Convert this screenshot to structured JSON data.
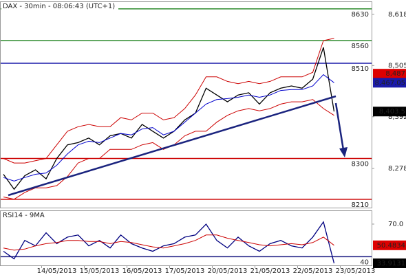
{
  "chart_data": [
    {
      "type": "line",
      "title": "DAX - 30min - 08:06:43 (UTC+1)",
      "categories": [
        null,
        null,
        null,
        null,
        null,
        "14/05/2013",
        null,
        null,
        null,
        "15/05/2013",
        null,
        null,
        null,
        "16/05/2013",
        null,
        null,
        null,
        "17/05/2013",
        null,
        null,
        null,
        "20/05/2013",
        null,
        null,
        null,
        "21/05/2013",
        null,
        null,
        null,
        "22/05/2013",
        null,
        null,
        null,
        "23/05/2013",
        null
      ],
      "series": [
        {
          "color": "#000000",
          "values": [
            8265,
            8232,
            8262,
            8275,
            8255,
            8300,
            8330,
            8335,
            8345,
            8330,
            8350,
            8355,
            8345,
            8375,
            8360,
            8345,
            8360,
            8385,
            8400,
            8455,
            8440,
            8425,
            8440,
            8445,
            8420,
            8445,
            8455,
            8460,
            8455,
            8475,
            8545,
            8403.5,
            null,
            null,
            null
          ]
        },
        {
          "color": "#cc0000",
          "values": [
            8300,
            8290,
            8290,
            8295,
            8300,
            8330,
            8360,
            8370,
            8375,
            8370,
            8370,
            8390,
            8385,
            8400,
            8400,
            8385,
            8390,
            8410,
            8440,
            8480,
            8480,
            8470,
            8465,
            8470,
            8465,
            8470,
            8480,
            8480,
            8480,
            8490,
            8560,
            8565,
            null,
            null,
            null
          ]
        },
        {
          "color": "#cc0000",
          "values": [
            8215,
            8210,
            8225,
            8235,
            8235,
            8240,
            8260,
            8290,
            8300,
            8300,
            8320,
            8320,
            8320,
            8330,
            8335,
            8320,
            8330,
            8350,
            8360,
            8360,
            8380,
            8395,
            8405,
            8410,
            8405,
            8410,
            8420,
            8425,
            8425,
            8430,
            8410,
            8395,
            null,
            null,
            null
          ]
        },
        {
          "color": "#0000cc",
          "values": [
            8258,
            8250,
            8258,
            8265,
            8268,
            8285,
            8310,
            8330,
            8338,
            8335,
            8345,
            8355,
            8352,
            8365,
            8368,
            8352,
            8360,
            8380,
            8400,
            8420,
            8430,
            8432,
            8435,
            8440,
            8435,
            8440,
            8450,
            8452,
            8452,
            8460,
            8485,
            8467.05,
            null,
            null,
            null
          ]
        }
      ],
      "ylim": [
        8190,
        8645
      ],
      "yticks": [
        {
          "value": 8618,
          "label": "8,618"
        },
        {
          "value": 8505,
          "label": "8,505"
        },
        {
          "value": 8392,
          "label": "8,392"
        },
        {
          "value": 8278,
          "label": "8,278"
        }
      ],
      "levels": [
        {
          "value": 8630,
          "color": "#2e8b2e"
        },
        {
          "value": 8560,
          "color": "#2e8b2e"
        },
        {
          "value": 8510,
          "color": "#1a1aaa"
        },
        {
          "value": 8300,
          "color": "#cc0000"
        },
        {
          "value": 8210,
          "color": "#cc0000"
        }
      ],
      "price_tags": [
        {
          "value": 8487,
          "label": "8,487",
          "color": "#dd0000"
        },
        {
          "value": 8467.05,
          "label": "8,467.05",
          "color": "#1a1aaa"
        },
        {
          "value": 8403.5,
          "label": "8,403.5",
          "color": "#000000"
        }
      ]
    },
    {
      "type": "line",
      "title": "RSI14 - 9MA",
      "series": [
        {
          "color": "#000080",
          "values": [
            45,
            38,
            55,
            50,
            62,
            52,
            58,
            60,
            50,
            55,
            48,
            60,
            52,
            48,
            45,
            50,
            52,
            58,
            60,
            70,
            55,
            48,
            58,
            50,
            45,
            52,
            55,
            50,
            48,
            58,
            72,
            33.9131,
            null,
            null,
            null
          ]
        },
        {
          "color": "#cc0000",
          "values": [
            48,
            46,
            47,
            50,
            52,
            53,
            55,
            55,
            54,
            54,
            52,
            54,
            53,
            51,
            49,
            48,
            50,
            52,
            55,
            60,
            60,
            57,
            55,
            53,
            51,
            50,
            51,
            52,
            51,
            53,
            58,
            50.4834,
            null,
            null,
            null
          ]
        }
      ],
      "ylim": [
        32,
        82
      ],
      "yticks": [
        {
          "value": 70,
          "label": "70.0"
        }
      ],
      "levels": [
        {
          "value": 40,
          "color": "#1a1a80"
        }
      ],
      "price_tags": [
        {
          "value": 50.4834,
          "label": "50.4834",
          "color": "#dd0000"
        },
        {
          "value": 33.9131,
          "label": "33.9131",
          "color": "#000000"
        }
      ]
    }
  ]
}
